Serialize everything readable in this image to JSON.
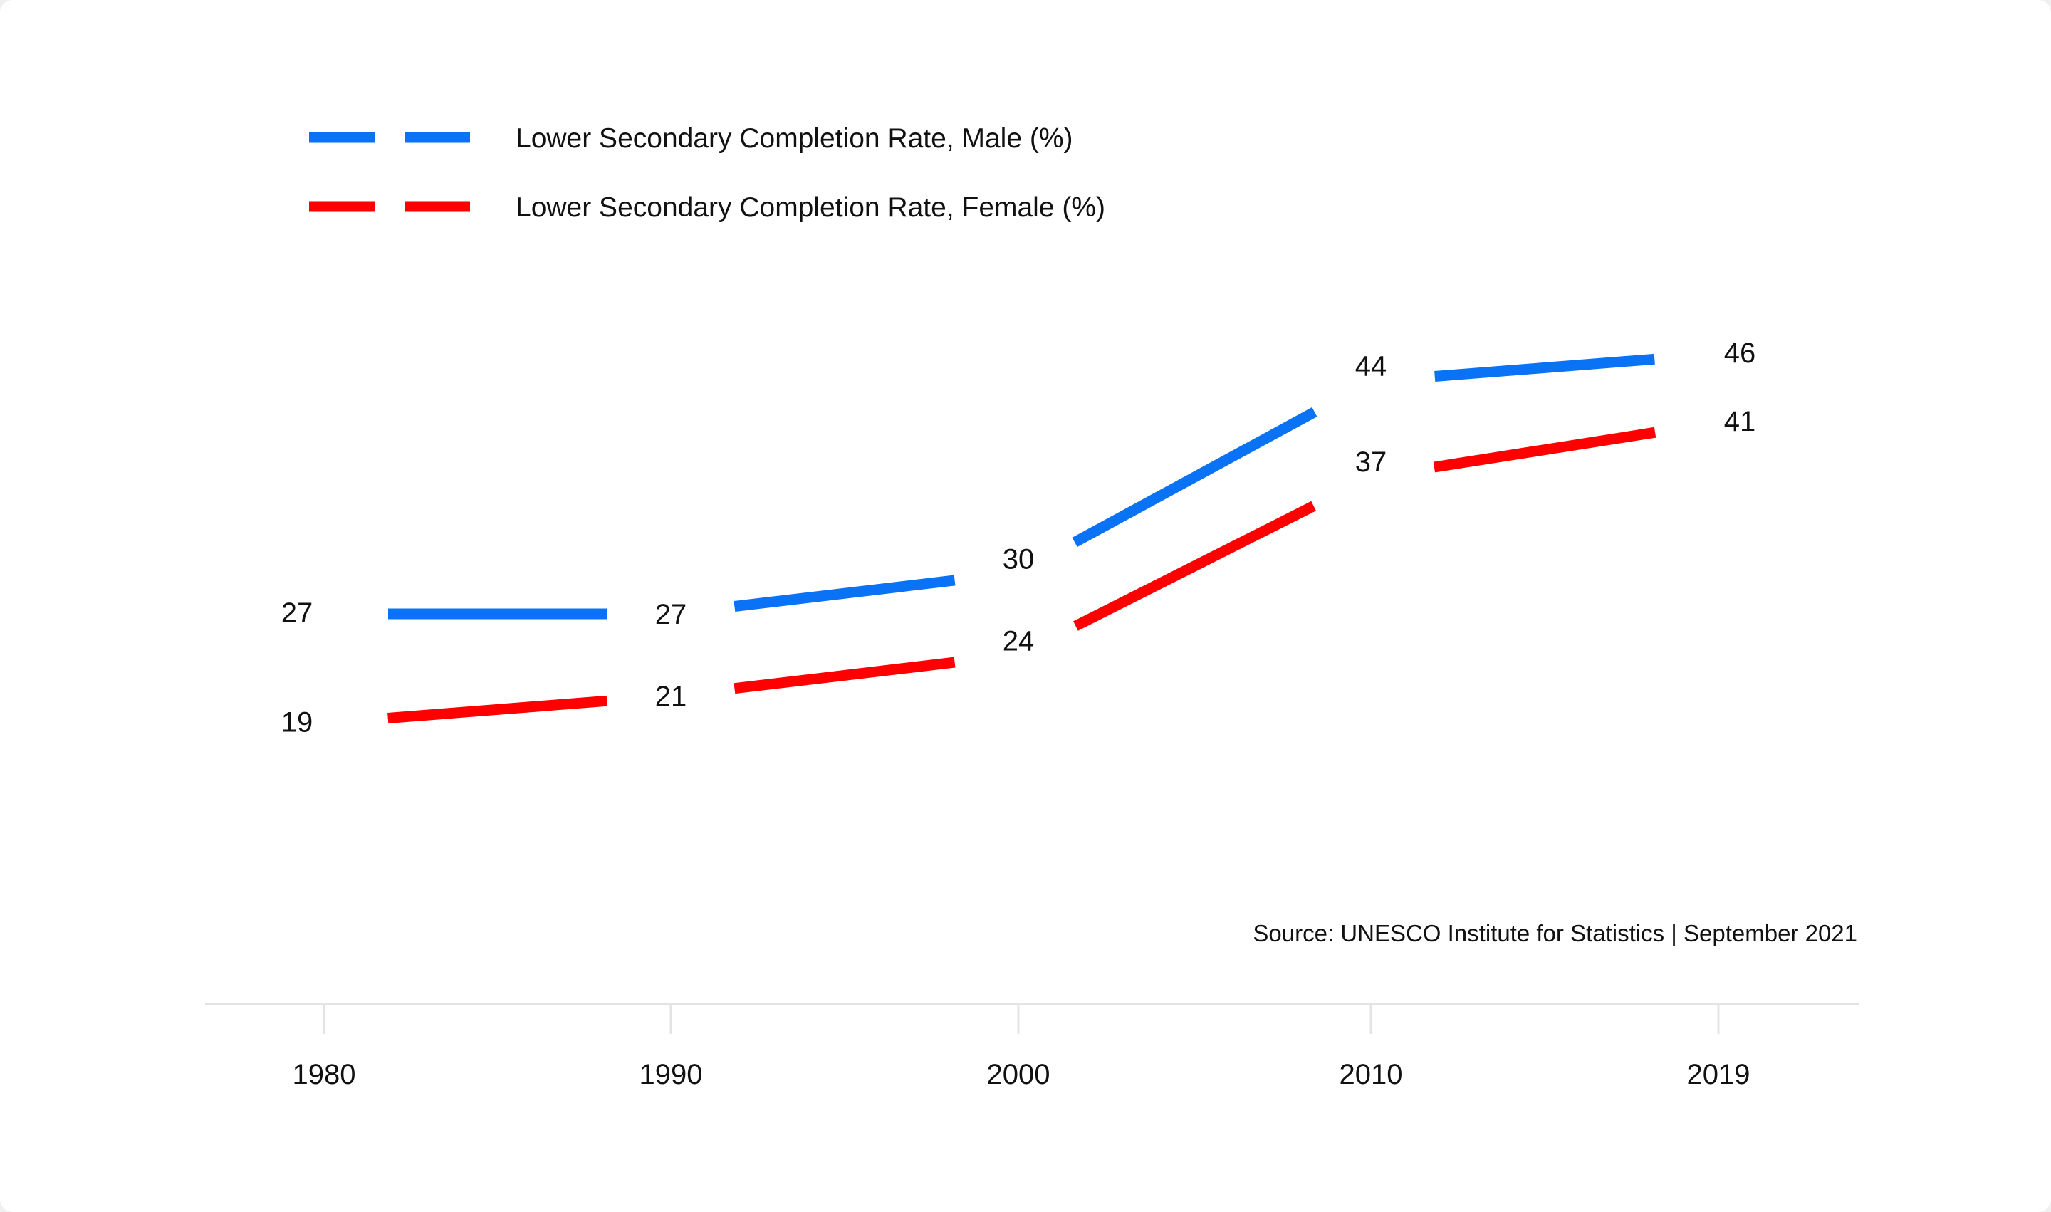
{
  "chart_data": {
    "type": "line",
    "x": [
      "1980",
      "1990",
      "2000",
      "2010",
      "2019"
    ],
    "series": [
      {
        "name": "Lower Secondary Completion Rate, Male (%)",
        "values": [
          27,
          27,
          30,
          44,
          46
        ],
        "labels": [
          "27",
          "27",
          "30",
          "44",
          "46"
        ],
        "color": "#0a72f5"
      },
      {
        "name": "Lower Secondary Completion Rate, Female (%)",
        "values": [
          19,
          21,
          24,
          37,
          41
        ],
        "labels": [
          "19",
          "21",
          "24",
          "37",
          "41"
        ],
        "color": "#ff0000"
      }
    ],
    "legend_position": "top-left",
    "source": "Source: UNESCO Institute for Statistics | September 2021",
    "grid": false,
    "x_axis_line_color": "#e4e4e4"
  }
}
